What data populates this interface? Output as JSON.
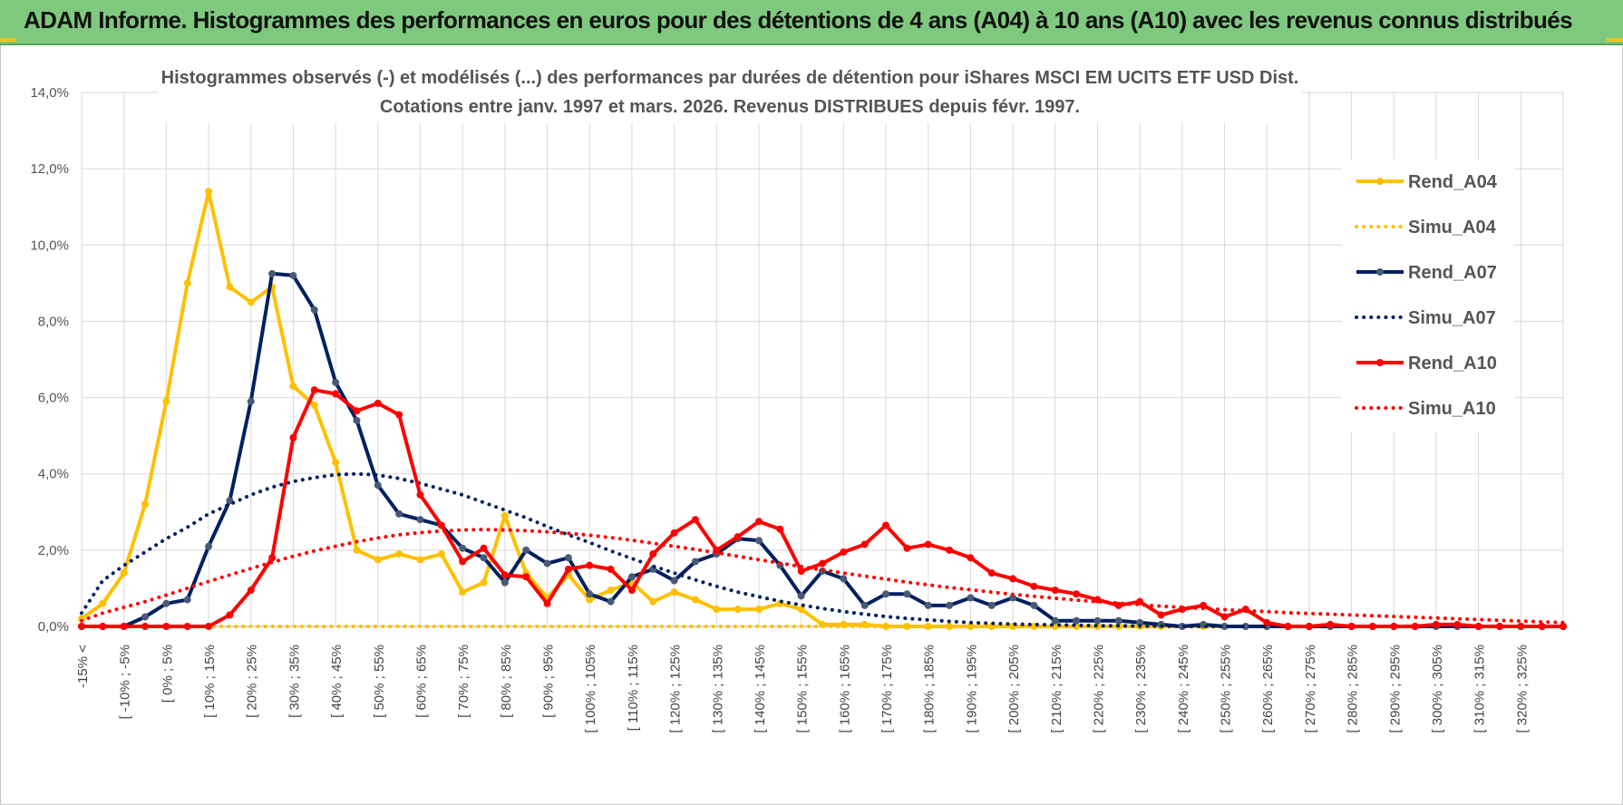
{
  "banner": {
    "title": "ADAM Informe. Histogrammes des performances en euros pour des détentions de 4 ans (A04) à 10 ans (A10) avec les revenus connus distribués"
  },
  "colors": {
    "banner_bg": "#7fc97f",
    "a04": "#FFC000",
    "a07": "#002060",
    "a10": "#FF0000",
    "grid": "#d9d9d9"
  },
  "chart_data": {
    "type": "line",
    "title_line1": "Histogrammes observés (-) et modélisés (...) des performances par durées de détention pour iShares MSCI EM UCITS ETF USD Dist.",
    "title_line2": "Cotations entre janv. 1997 et mars. 2026.  Revenus DISTRIBUES depuis févr. 1997.",
    "ylim": [
      0,
      14
    ],
    "y_ticks": [
      "0,0%",
      "2,0%",
      "4,0%",
      "6,0%",
      "8,0%",
      "10,0%",
      "12,0%",
      "14,0%"
    ],
    "x_labels": [
      "-15% <",
      "[ -10% ; -5%",
      "[ 0% ; 5%",
      "[ 10% ; 15%",
      "[ 20% ; 25%",
      "[ 30% ; 35%",
      "[ 40% ; 45%",
      "[ 50% ; 55%",
      "[ 60% ; 65%",
      "[ 70% ; 75%",
      "[ 80% ; 85%",
      "[ 90% ; 95%",
      "[ 100% ; 105%",
      "[ 110% ; 115%",
      "[ 120% ; 125%",
      "[ 130% ; 135%",
      "[ 140% ; 145%",
      "[ 150% ; 155%",
      "[ 160% ; 165%",
      "[ 170% ; 175%",
      "[ 180% ; 185%",
      "[ 190% ; 195%",
      "[ 200% ; 205%",
      "[ 210% ; 215%",
      "[ 220% ; 225%",
      "[ 230% ; 235%",
      "[ 240% ; 245%",
      "[ 250% ; 255%",
      "[ 260% ; 265%",
      "[ 270% ; 275%",
      "[ 280% ; 285%",
      "[ 290% ; 295%",
      "[ 300% ; 305%",
      "[ 310% ; 315%",
      "[ 320% ; 325%"
    ],
    "series": [
      {
        "name": "Rend_A04",
        "style": "solid",
        "color": "#FFC000",
        "values": [
          0.2,
          0.6,
          1.4,
          3.2,
          5.9,
          9.0,
          11.4,
          8.9,
          8.5,
          8.9,
          6.3,
          5.8,
          4.3,
          2.0,
          1.75,
          1.9,
          1.75,
          1.9,
          0.9,
          1.15,
          2.9,
          1.4,
          0.75,
          1.35,
          0.7,
          0.95,
          1.15,
          0.65,
          0.9,
          0.7,
          0.45,
          0.45,
          0.45,
          0.6,
          0.45,
          0.05,
          0.05,
          0.05,
          0,
          0,
          0,
          0,
          0,
          0,
          0,
          0,
          0,
          0,
          0,
          0,
          0,
          0,
          0,
          0,
          0,
          0,
          0,
          0,
          0,
          0,
          0,
          0,
          0,
          0,
          0,
          0,
          0,
          0,
          0,
          0,
          0
        ]
      },
      {
        "name": "Simu_A04",
        "style": "dotted",
        "color": "#FFC000",
        "values": [
          0,
          0,
          0,
          0,
          0,
          0,
          0,
          0,
          0,
          0,
          0,
          0,
          0,
          0,
          0,
          0,
          0,
          0,
          0,
          0,
          0,
          0,
          0,
          0,
          0,
          0,
          0,
          0,
          0,
          0,
          0,
          0,
          0,
          0,
          0,
          0,
          0,
          0,
          0,
          0,
          0,
          0,
          0,
          0,
          0,
          0,
          0,
          0,
          0,
          0,
          0,
          0,
          0,
          0,
          0,
          0,
          0,
          0,
          0,
          0,
          0,
          0,
          0,
          0,
          0,
          0,
          0,
          0,
          0,
          0,
          0
        ]
      },
      {
        "name": "Rend_A07",
        "style": "solid",
        "color": "#002060",
        "values": [
          0,
          0,
          0,
          0.25,
          0.6,
          0.7,
          2.1,
          3.3,
          5.9,
          9.25,
          9.2,
          8.3,
          6.4,
          5.4,
          3.7,
          2.95,
          2.8,
          2.65,
          2.05,
          1.8,
          1.15,
          2.0,
          1.65,
          1.8,
          0.85,
          0.65,
          1.3,
          1.5,
          1.2,
          1.7,
          1.9,
          2.3,
          2.25,
          1.6,
          0.8,
          1.45,
          1.25,
          0.55,
          0.85,
          0.85,
          0.55,
          0.55,
          0.75,
          0.55,
          0.75,
          0.55,
          0.15,
          0.15,
          0.15,
          0.15,
          0.1,
          0.05,
          0,
          0.05,
          0,
          0,
          0,
          0,
          0,
          0,
          0,
          0,
          0,
          0,
          0,
          0,
          0,
          0,
          0,
          0,
          0
        ]
      },
      {
        "name": "Simu_A07",
        "style": "dotted",
        "color": "#002060",
        "values": [
          0.35,
          1.2,
          1.6,
          1.95,
          2.3,
          2.6,
          2.95,
          3.2,
          3.45,
          3.65,
          3.8,
          3.9,
          3.98,
          4.0,
          3.97,
          3.88,
          3.75,
          3.6,
          3.45,
          3.25,
          3.05,
          2.85,
          2.62,
          2.4,
          2.2,
          1.98,
          1.78,
          1.58,
          1.4,
          1.22,
          1.05,
          0.9,
          0.78,
          0.66,
          0.56,
          0.47,
          0.39,
          0.32,
          0.26,
          0.21,
          0.17,
          0.13,
          0.1,
          0.08,
          0.06,
          0.05,
          0.04,
          0.03,
          0.02,
          0.02,
          0.01,
          0.01,
          0,
          0,
          0,
          0,
          0,
          0,
          0,
          0,
          0,
          0,
          0,
          0,
          0,
          0,
          0,
          0,
          0,
          0,
          0
        ]
      },
      {
        "name": "Rend_A10",
        "style": "solid",
        "color": "#FF0000",
        "values": [
          0,
          0,
          0,
          0,
          0,
          0,
          0,
          0.3,
          0.95,
          1.8,
          4.95,
          6.2,
          6.1,
          5.65,
          5.85,
          5.55,
          3.45,
          2.65,
          1.7,
          2.05,
          1.35,
          1.3,
          0.6,
          1.5,
          1.6,
          1.5,
          0.95,
          1.9,
          2.45,
          2.8,
          2.0,
          2.35,
          2.75,
          2.55,
          1.45,
          1.65,
          1.95,
          2.15,
          2.65,
          2.05,
          2.15,
          2.0,
          1.8,
          1.4,
          1.25,
          1.05,
          0.95,
          0.85,
          0.7,
          0.55,
          0.65,
          0.3,
          0.45,
          0.55,
          0.25,
          0.45,
          0.1,
          0,
          0,
          0.05,
          0,
          0,
          0,
          0,
          0.05,
          0.05,
          0,
          0,
          0,
          0,
          0
        ]
      },
      {
        "name": "Simu_A10",
        "style": "dotted",
        "color": "#FF0000",
        "values": [
          0.15,
          0.35,
          0.5,
          0.65,
          0.82,
          1.0,
          1.18,
          1.35,
          1.52,
          1.68,
          1.84,
          1.98,
          2.1,
          2.22,
          2.32,
          2.4,
          2.46,
          2.5,
          2.53,
          2.54,
          2.53,
          2.51,
          2.48,
          2.44,
          2.39,
          2.33,
          2.26,
          2.18,
          2.1,
          2.02,
          1.93,
          1.84,
          1.75,
          1.66,
          1.57,
          1.48,
          1.4,
          1.32,
          1.24,
          1.16,
          1.09,
          1.02,
          0.96,
          0.9,
          0.84,
          0.79,
          0.74,
          0.69,
          0.65,
          0.61,
          0.57,
          0.53,
          0.5,
          0.47,
          0.44,
          0.41,
          0.39,
          0.36,
          0.34,
          0.32,
          0.3,
          0.28,
          0.26,
          0.24,
          0.22,
          0.2,
          0.18,
          0.16,
          0.14,
          0.12,
          0.1
        ]
      }
    ]
  }
}
